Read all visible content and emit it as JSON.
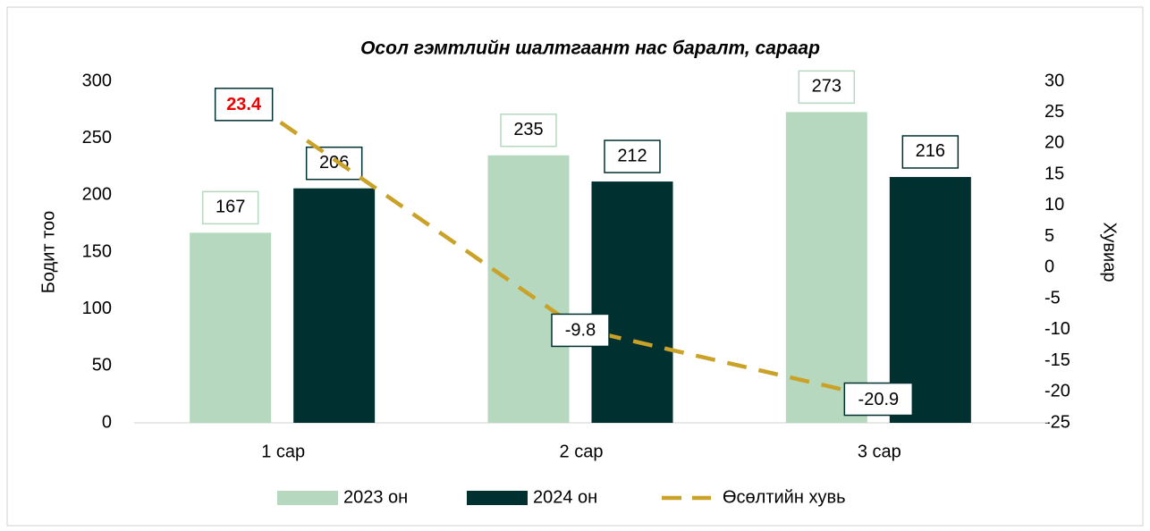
{
  "chart_data": {
    "type": "bar_line",
    "title": "Осол гэмтлийн шалтгаант нас баралт, сараар",
    "y_label": "Бодит тоо",
    "y2_label": "Хувиар",
    "categories": [
      "1 сар",
      "2 сар",
      "3 сар"
    ],
    "series": [
      {
        "name": "2023 он",
        "color": "#b5d8be",
        "values": [
          167,
          235,
          273
        ]
      },
      {
        "name": "2024 он",
        "color": "#00302f",
        "values": [
          206,
          212,
          216
        ]
      },
      {
        "name": "Өсөлтийн хувь",
        "color": "#c9a227",
        "axis": "y2",
        "type": "line",
        "dashed": true,
        "values": [
          23.4,
          -9.8,
          -20.9
        ],
        "value_label_colors": [
          "#ee0000",
          "#000000",
          "#000000"
        ]
      }
    ],
    "ylim": [
      0,
      300
    ],
    "yticks": [
      0,
      50,
      100,
      150,
      200,
      250,
      300
    ],
    "y2lim": [
      -25,
      30
    ],
    "y2ticks": [
      -25,
      -20,
      -15,
      -10,
      -5,
      0,
      5,
      10,
      15,
      20,
      25,
      30
    ],
    "legend": "bottom"
  }
}
